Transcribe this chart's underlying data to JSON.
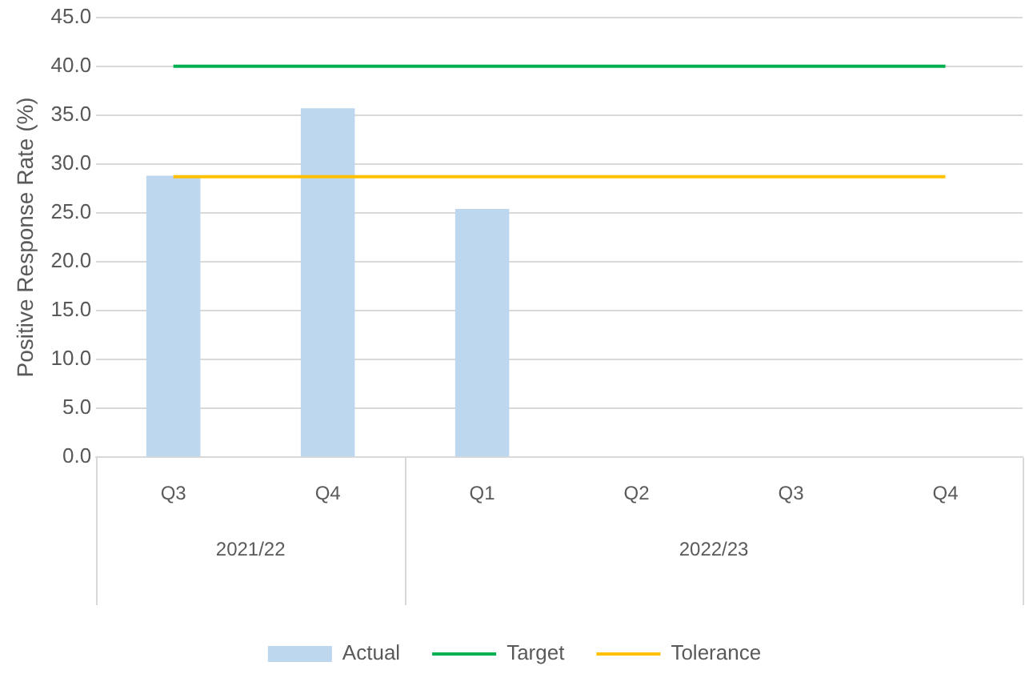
{
  "chart_data": {
    "type": "bar",
    "ylabel": "Positive Response Rate (%)",
    "categories": [
      "Q3",
      "Q4",
      "Q1",
      "Q2",
      "Q3",
      "Q4"
    ],
    "series": [
      {
        "name": "Actual",
        "color": "#bdd7ee",
        "values": [
          28.8,
          35.7,
          25.4,
          null,
          null,
          null
        ]
      },
      {
        "name": "Target",
        "type": "line",
        "color": "#00b050",
        "values": [
          40,
          40,
          40,
          40,
          40,
          40
        ]
      },
      {
        "name": "Tolerance",
        "type": "line",
        "color": "#ffc000",
        "values": [
          28.7,
          28.7,
          28.7,
          28.7,
          28.7,
          28.7
        ]
      }
    ],
    "annotations": [
      "2021/22",
      "2022/23"
    ],
    "ylim": [
      0,
      45
    ],
    "yticks": [
      {
        "value": 0,
        "label": "0.0"
      },
      {
        "value": 5,
        "label": "5.0"
      },
      {
        "value": 10,
        "label": "10.0"
      },
      {
        "value": 15,
        "label": "15.0"
      },
      {
        "value": 20,
        "label": "20.0"
      },
      {
        "value": 25,
        "label": "25.0"
      },
      {
        "value": 30,
        "label": "30.0"
      },
      {
        "value": 35,
        "label": "35.0"
      },
      {
        "value": 40,
        "label": "40.0"
      },
      {
        "value": 45,
        "label": "45.0"
      }
    ],
    "grid": "y",
    "legend": "bottom",
    "marker": "none",
    "line_style": "solid"
  }
}
